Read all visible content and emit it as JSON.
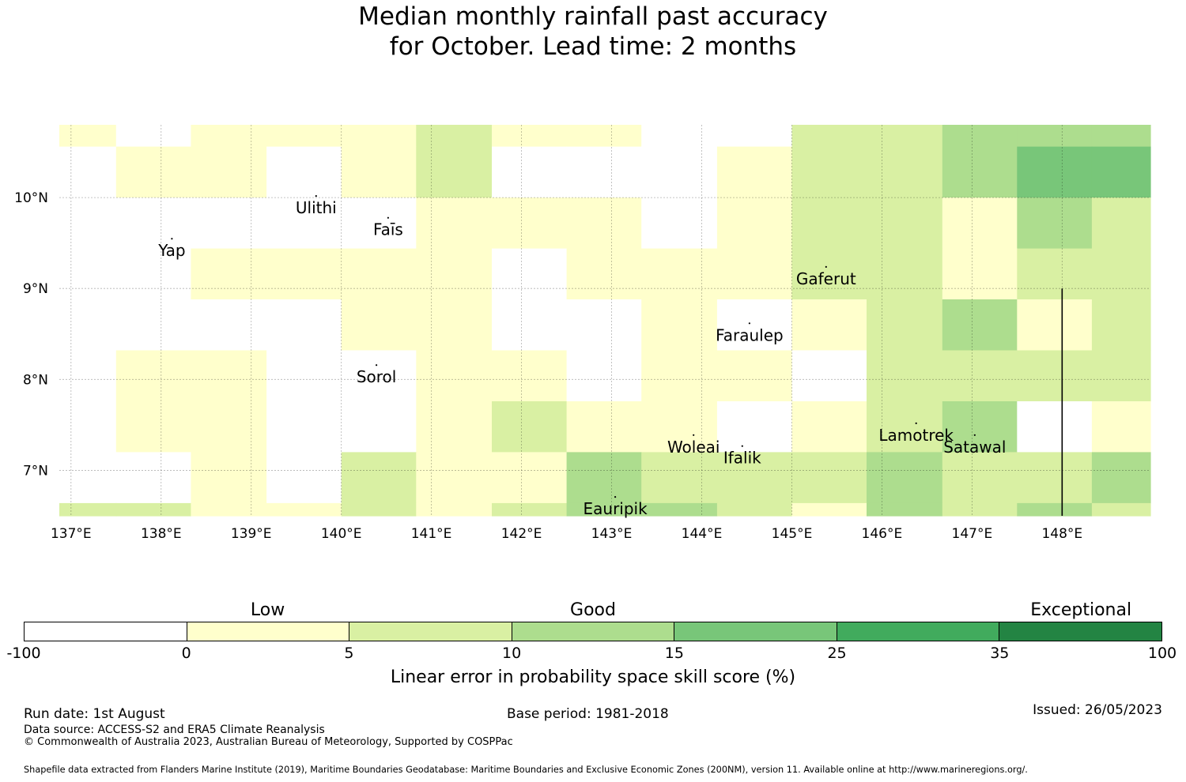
{
  "title": {
    "line1": "Median monthly rainfall past accuracy",
    "line2": "for October. Lead time: 2 months"
  },
  "chart_data": {
    "type": "heatmap",
    "x_ticks": [
      "137°E",
      "138°E",
      "139°E",
      "140°E",
      "141°E",
      "142°E",
      "143°E",
      "144°E",
      "145°E",
      "146°E",
      "147°E",
      "148°E"
    ],
    "y_ticks": [
      "10°N",
      "9°N",
      "8°N",
      "7°N"
    ],
    "lon_range": [
      136.87,
      148.98
    ],
    "lat_range": [
      6.5,
      10.8
    ],
    "x_tick_values": [
      137,
      138,
      139,
      140,
      141,
      142,
      143,
      144,
      145,
      146,
      147,
      148
    ],
    "y_tick_values": [
      10,
      9,
      8,
      7
    ],
    "grid": true,
    "cell_lon_edges": [
      136.87,
      137.5,
      138.33,
      139.17,
      140.0,
      140.83,
      141.67,
      142.5,
      143.33,
      144.17,
      145.0,
      145.83,
      146.67,
      147.5,
      148.33,
      148.98
    ],
    "cell_lat_edges": [
      10.8,
      10.56,
      10.0,
      9.44,
      8.88,
      8.32,
      7.76,
      7.2,
      6.64,
      6.5
    ],
    "category_grid": [
      [
        1,
        0,
        1,
        1,
        1,
        2,
        1,
        1,
        0,
        0,
        2,
        2,
        3,
        3,
        3
      ],
      [
        0,
        1,
        1,
        0,
        1,
        2,
        0,
        0,
        0,
        1,
        2,
        2,
        3,
        4,
        4
      ],
      [
        0,
        0,
        0,
        0,
        0,
        1,
        1,
        1,
        0,
        1,
        2,
        2,
        1,
        3,
        2
      ],
      [
        0,
        0,
        1,
        1,
        1,
        1,
        0,
        1,
        1,
        1,
        2,
        2,
        1,
        2,
        2
      ],
      [
        0,
        0,
        0,
        0,
        1,
        1,
        0,
        0,
        1,
        0,
        1,
        2,
        3,
        1,
        2
      ],
      [
        0,
        1,
        1,
        0,
        0,
        1,
        1,
        0,
        1,
        1,
        0,
        2,
        2,
        2,
        2
      ],
      [
        0,
        1,
        1,
        0,
        0,
        1,
        2,
        1,
        1,
        0,
        1,
        2,
        3,
        0,
        1
      ],
      [
        0,
        0,
        1,
        0,
        2,
        1,
        1,
        3,
        2,
        2,
        2,
        3,
        2,
        2,
        3
      ],
      [
        2,
        2,
        1,
        1,
        2,
        1,
        2,
        3,
        3,
        2,
        1,
        3,
        2,
        3,
        2
      ]
    ],
    "legend_categories": [
      {
        "label": "Low",
        "value": 0
      },
      {
        "label": "Good",
        "value": 10
      },
      {
        "label": "Exceptional",
        "value": 35
      }
    ],
    "colorbar_ticks": [
      "-100",
      "0",
      "5",
      "10",
      "15",
      "25",
      "35",
      "100"
    ],
    "colorbar_colors": [
      "#ffffff",
      "#ffffcc",
      "#d9f0a3",
      "#addd8e",
      "#78c679",
      "#41ab5d",
      "#238443"
    ],
    "colorbar_label": "Linear error in probability space skill score (%)",
    "islands": [
      {
        "name": "Ulithi",
        "lon": 139.72,
        "lat": 10.0
      },
      {
        "name": "Faīs",
        "lon": 140.52,
        "lat": 9.76
      },
      {
        "name": "Yap",
        "lon": 138.12,
        "lat": 9.53
      },
      {
        "name": "Gaferut",
        "lon": 145.38,
        "lat": 9.22
      },
      {
        "name": "Faraulep",
        "lon": 144.53,
        "lat": 8.6
      },
      {
        "name": "Sorol",
        "lon": 140.39,
        "lat": 8.14
      },
      {
        "name": "Woleai",
        "lon": 143.91,
        "lat": 7.37
      },
      {
        "name": "Ifalik",
        "lon": 144.45,
        "lat": 7.25
      },
      {
        "name": "Lamotrek",
        "lon": 146.38,
        "lat": 7.5
      },
      {
        "name": "Satawal",
        "lon": 147.03,
        "lat": 7.37
      },
      {
        "name": "Eauripik",
        "lon": 143.04,
        "lat": 6.69
      }
    ],
    "boundary_line_lon": 148.0,
    "boundary_line_lat_range": [
      6.5,
      9.0
    ]
  },
  "footer": {
    "run_date": "Run date: 1st August",
    "base_period": "Base period: 1981-2018",
    "issued": "Issued: 26/05/2023",
    "data_source": "Data source: ACCESS-S2 and ERA5 Climate Reanalysis",
    "copyright": "© Commonwealth of Australia 2023, Australian Bureau of Meteorology, Supported by COSPPac",
    "shapefile": "Shapefile data extracted from Flanders Marine Institute (2019), Maritime Boundaries Geodatabase: Maritime Boundaries and Exclusive Economic Zones (200NM), version 11. Available online at http://www.marineregions.org/."
  }
}
